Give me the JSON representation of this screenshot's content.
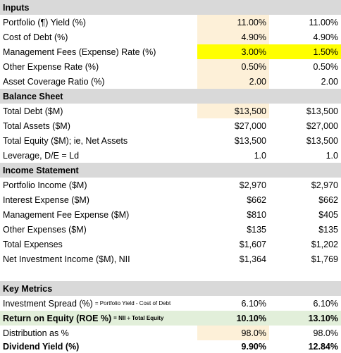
{
  "inputs": {
    "header": "Inputs",
    "rows": [
      {
        "label": "Portfolio (¶) Yield (%)",
        "v1": "11.00%",
        "v2": "11.00%"
      },
      {
        "label": "Cost of Debt (%)",
        "v1": "4.90%",
        "v2": "4.90%"
      },
      {
        "label": "Management Fees (Expense) Rate (%)",
        "v1": "3.00%",
        "v2": "1.50%"
      },
      {
        "label": "Other Expense Rate (%)",
        "v1": "0.50%",
        "v2": "0.50%"
      },
      {
        "label": "Asset Coverage Ratio (%)",
        "v1": "2.00",
        "v2": "2.00"
      }
    ]
  },
  "balance": {
    "header": "Balance Sheet",
    "rows": [
      {
        "label": "Total Debt ($M)",
        "v1": "$13,500",
        "v2": "$13,500"
      },
      {
        "label": "Total Assets ($M)",
        "v1": "$27,000",
        "v2": "$27,000"
      },
      {
        "label": "Total Equity ($M); ie, Net Assets",
        "v1": "$13,500",
        "v2": "$13,500"
      },
      {
        "label": "Leverage, D/E = Ld",
        "v1": "1.0",
        "v2": "1.0"
      }
    ]
  },
  "income": {
    "header": "Income Statement",
    "rows": [
      {
        "label": "Portfolio Income ($M)",
        "v1": "$2,970",
        "v2": "$2,970"
      },
      {
        "label": "Interest Expense ($M)",
        "v1": "$662",
        "v2": "$662"
      },
      {
        "label": "Management Fee Expense ($M)",
        "v1": "$810",
        "v2": "$405"
      },
      {
        "label": "Other Expenses ($M)",
        "v1": "$135",
        "v2": "$135"
      },
      {
        "label": "Total Expenses",
        "v1": "$1,607",
        "v2": "$1,202"
      },
      {
        "label": "Net Investment Income ($M), NII",
        "v1": "$1,364",
        "v2": "$1,769"
      }
    ]
  },
  "metrics": {
    "header": "Key Metrics",
    "spread": {
      "label": "Investment Spread (%)",
      "note": "= Portfolio Yield - Cost of Debt",
      "v1": "6.10%",
      "v2": "6.10%"
    },
    "roe": {
      "label": "Return on Equity (ROE %)",
      "note": "= NII ÷ Total Equity",
      "v1": "10.10%",
      "v2": "13.10%"
    },
    "distribution": {
      "label": "Distribution as %",
      "v1": "98.0%",
      "v2": "98.0%"
    },
    "dividend": {
      "label": "Dividend Yield (%)",
      "v1": "9.90%",
      "v2": "12.84%"
    }
  },
  "colors": {
    "section": "#d9d9d9",
    "input": "#fdf0d8",
    "highlight": "#ffff00",
    "roe": "#e2efda"
  }
}
